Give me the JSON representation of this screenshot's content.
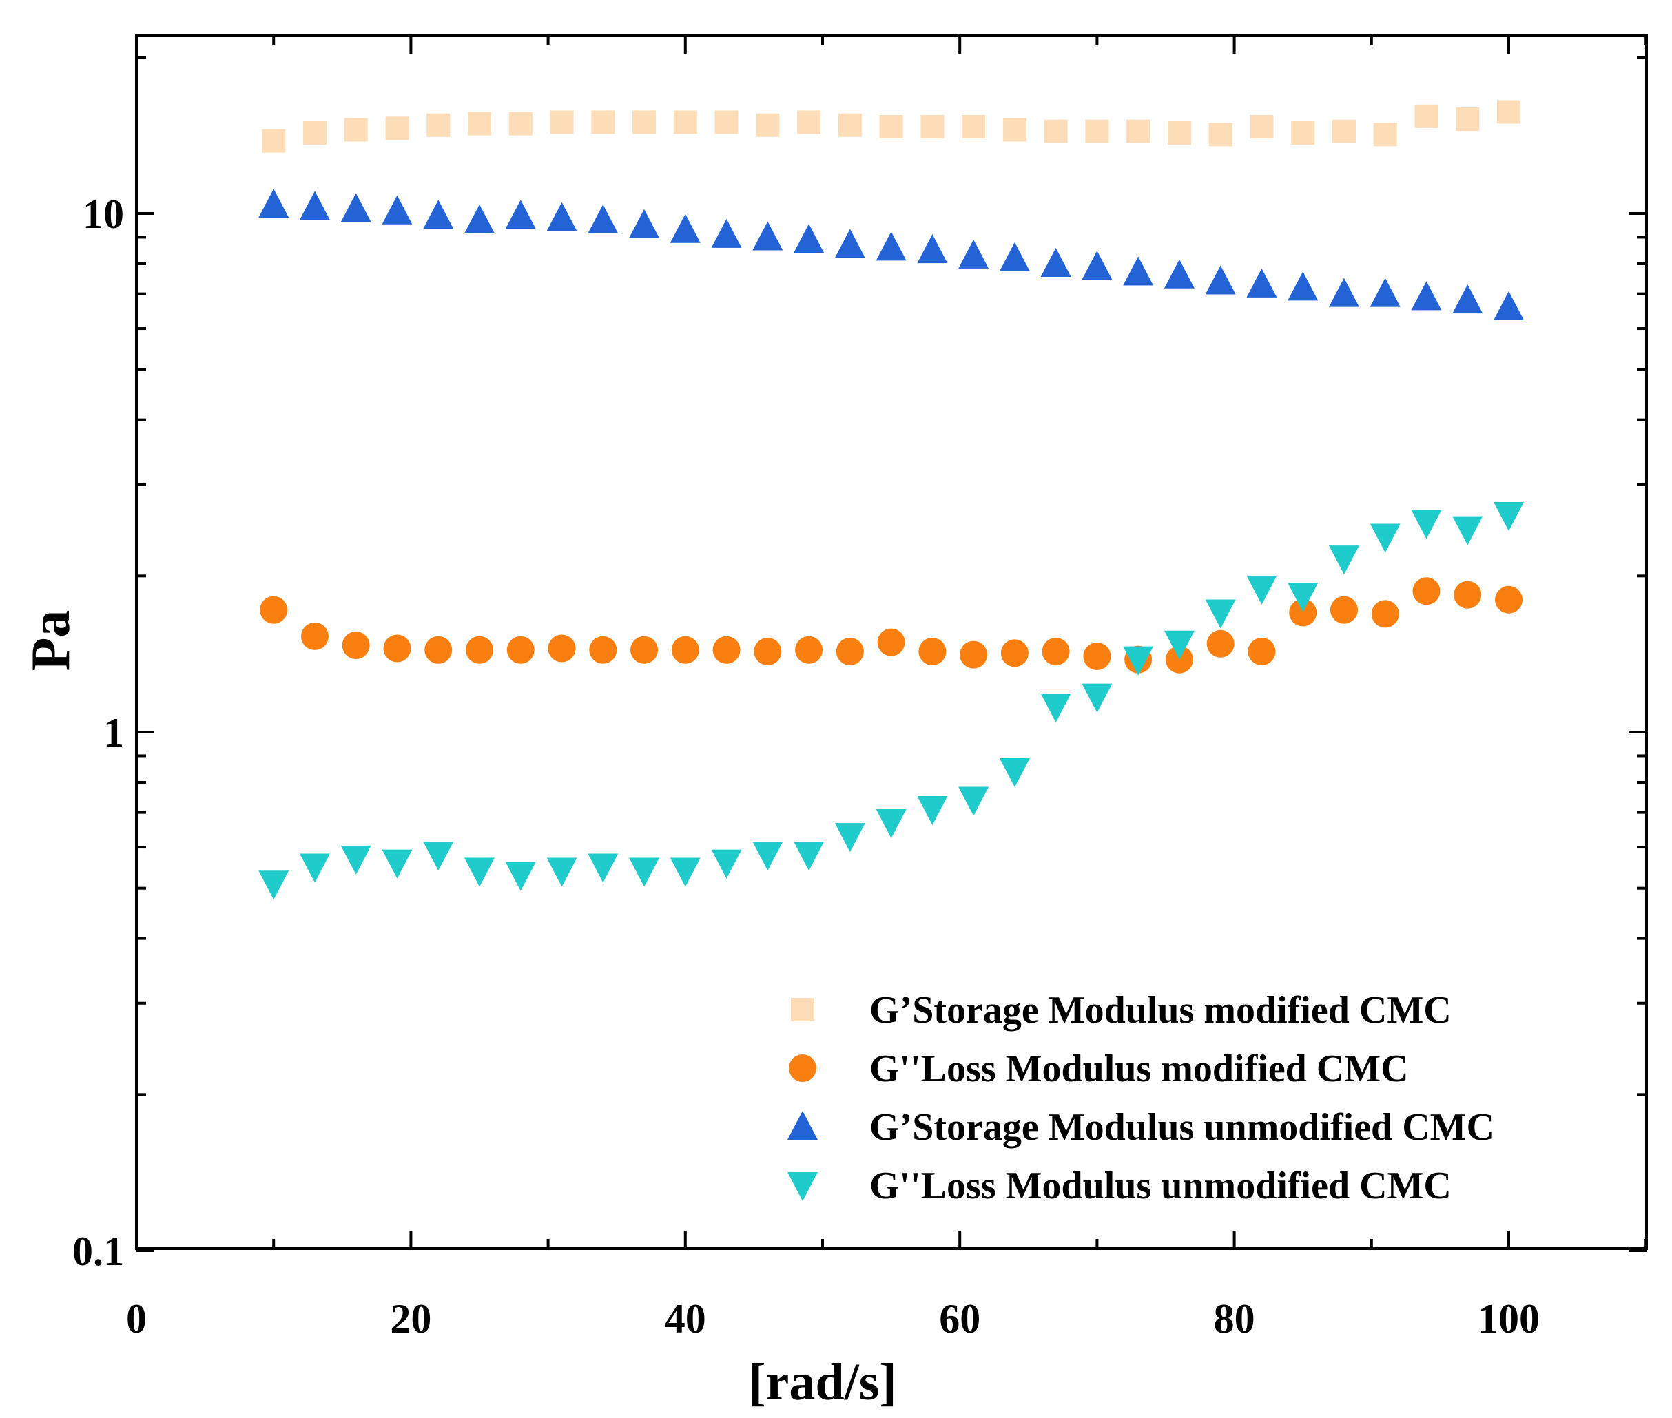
{
  "chart_data": {
    "type": "scatter",
    "title": "",
    "xlabel": "[rad/s]",
    "ylabel": "Pa",
    "xlim": [
      0,
      110
    ],
    "ylim": [
      0.1,
      25
    ],
    "yscale": "log",
    "x_ticks": [
      0,
      20,
      40,
      60,
      80,
      100
    ],
    "x_tick_labels": [
      "0",
      "20",
      "40",
      "60",
      "80",
      "100"
    ],
    "y_ticks": [
      0.1,
      1,
      10
    ],
    "y_tick_labels": [
      "0.1",
      "1",
      "10"
    ],
    "legend_position": "bottom-right",
    "x": [
      10,
      13,
      16,
      19,
      22,
      25,
      28,
      31,
      34,
      37,
      40,
      43,
      46,
      49,
      52,
      55,
      58,
      61,
      64,
      67,
      70,
      73,
      76,
      79,
      82,
      85,
      88,
      91,
      94,
      97,
      100
    ],
    "series": [
      {
        "name": "G’Storage Modulus modified CMC",
        "marker": "square",
        "color": "#FDDDB8",
        "values": [
          13.8,
          14.3,
          14.5,
          14.6,
          14.8,
          14.9,
          14.9,
          15.0,
          15.0,
          15.0,
          15.0,
          15.0,
          14.8,
          15.0,
          14.8,
          14.7,
          14.7,
          14.7,
          14.5,
          14.4,
          14.4,
          14.4,
          14.3,
          14.2,
          14.7,
          14.3,
          14.4,
          14.2,
          15.4,
          15.2,
          15.7
        ]
      },
      {
        "name": "G''Loss Modulus modified CMC",
        "marker": "circle",
        "color": "#FA7F11",
        "values": [
          1.72,
          1.53,
          1.47,
          1.45,
          1.44,
          1.44,
          1.44,
          1.45,
          1.44,
          1.44,
          1.44,
          1.44,
          1.43,
          1.44,
          1.43,
          1.49,
          1.43,
          1.41,
          1.42,
          1.43,
          1.4,
          1.38,
          1.38,
          1.48,
          1.43,
          1.7,
          1.72,
          1.69,
          1.87,
          1.84,
          1.8
        ]
      },
      {
        "name": "G’Storage Modulus unmodified CMC",
        "marker": "triangle-up",
        "color": "#2463D6",
        "values": [
          10.4,
          10.3,
          10.2,
          10.1,
          9.9,
          9.7,
          9.9,
          9.8,
          9.7,
          9.5,
          9.3,
          9.1,
          9.0,
          8.9,
          8.7,
          8.6,
          8.5,
          8.3,
          8.2,
          8.0,
          7.9,
          7.7,
          7.6,
          7.4,
          7.3,
          7.2,
          7.0,
          7.0,
          6.9,
          6.8,
          6.6
        ]
      },
      {
        "name": "G''Loss Modulus unmodified CMC",
        "marker": "triangle-down",
        "color": "#1FCBCB",
        "values": [
          0.51,
          0.55,
          0.57,
          0.56,
          0.58,
          0.54,
          0.53,
          0.54,
          0.55,
          0.54,
          0.54,
          0.56,
          0.58,
          0.58,
          0.63,
          0.67,
          0.71,
          0.74,
          0.84,
          1.12,
          1.17,
          1.38,
          1.48,
          1.7,
          1.89,
          1.83,
          2.16,
          2.38,
          2.53,
          2.46,
          2.62
        ]
      }
    ]
  }
}
